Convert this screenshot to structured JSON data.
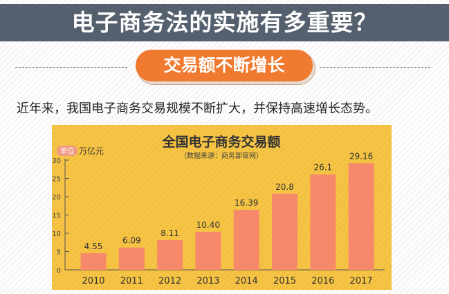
{
  "header": {
    "title": "电子商务法的实施有多重要？"
  },
  "section": {
    "badge": "交易额不断增长"
  },
  "intro": "近年来，我国电子商务交易规模不断扩大，并保持高速增长态势。",
  "colors": {
    "header_bg": "#55606e",
    "badge": "#f07a2f",
    "panel": "#f6c547",
    "bar_bottom": "#f6896a",
    "bar_top": "#f5a21f"
  },
  "chart_data": {
    "type": "bar",
    "title": "全国电子商务交易额",
    "subtitle": "（数据来源：商务部官网）",
    "unit_badge": "单位",
    "unit": "万亿元",
    "categories": [
      "2010",
      "2011",
      "2012",
      "2013",
      "2014",
      "2015",
      "2016",
      "2017"
    ],
    "values": [
      4.55,
      6.09,
      8.11,
      10.4,
      16.39,
      20.8,
      26.1,
      29.16
    ],
    "value_labels": [
      "4.55",
      "6.09",
      "8.11",
      "10.40",
      "16.39",
      "20.8",
      "26.1",
      "29.16"
    ],
    "yticks": [
      "0",
      "5",
      "10",
      "15",
      "20",
      "25",
      "30"
    ],
    "ylim": [
      0,
      30
    ],
    "grid": false,
    "legend": "none"
  }
}
